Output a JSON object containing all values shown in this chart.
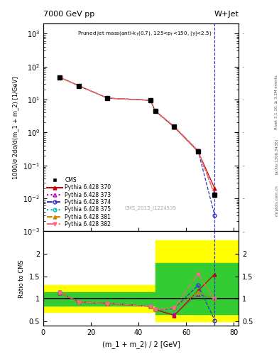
{
  "title_left": "7000 GeV pp",
  "title_right": "W+Jet",
  "annotation": "Pruned jet mass(anti-k$_T$(0.7), 125<p$_T$<150, |y|<2.5)",
  "watermark": "CMS_2013_I1224539",
  "ylabel_main": "1000/σ 2dσ/d(m_1 + m_2) [1/GeV]",
  "ylabel_ratio": "Ratio to CMS",
  "xlabel": "(m_1 + m_2) / 2 [GeV]",
  "right_label": "Rivet 3.1.10, ≥ 3.3M events",
  "arxiv_label": "[arXiv:1306.3436]",
  "mcplots_label": "mcplots.cern.ch",
  "x_data": [
    7,
    15,
    27,
    45,
    47,
    55,
    65,
    72
  ],
  "cms_y": [
    47,
    26,
    11,
    9.5,
    4.5,
    1.5,
    0.27,
    0.013
  ],
  "cms_yerr": [
    3,
    2,
    0.8,
    0.7,
    0.35,
    0.15,
    0.03,
    0.002
  ],
  "py370_y": [
    47,
    26,
    11,
    9.5,
    4.5,
    1.45,
    0.265,
    0.02
  ],
  "py373_y": [
    47,
    26,
    11,
    9.5,
    4.5,
    1.48,
    0.268,
    0.013
  ],
  "py374_y": [
    47,
    26,
    11,
    9.5,
    4.5,
    1.5,
    0.28,
    0.003
  ],
  "py375_y": [
    47,
    26,
    11,
    9.5,
    4.5,
    1.5,
    0.27,
    0.013
  ],
  "py381_y": [
    47,
    26,
    11,
    9.5,
    4.5,
    1.5,
    0.27,
    0.013
  ],
  "py382_y": [
    47,
    26,
    11,
    9.5,
    4.55,
    1.55,
    0.28,
    0.013
  ],
  "ratio_x": [
    7,
    15,
    27,
    45,
    47,
    55,
    65,
    72
  ],
  "r370": [
    1.14,
    0.93,
    0.9,
    0.83,
    0.76,
    0.63,
    1.18,
    1.55
  ],
  "r373": [
    1.13,
    0.92,
    0.89,
    0.83,
    0.77,
    0.65,
    1.1,
    1.0
  ],
  "r374": [
    1.14,
    0.93,
    0.9,
    0.83,
    0.76,
    0.78,
    1.3,
    0.52
  ],
  "r375": [
    1.14,
    0.93,
    0.9,
    0.83,
    0.76,
    0.78,
    1.13,
    1.0
  ],
  "r381": [
    1.14,
    0.93,
    0.9,
    0.83,
    0.76,
    0.8,
    1.15,
    1.0
  ],
  "r382": [
    1.14,
    0.93,
    0.9,
    0.83,
    0.76,
    0.8,
    1.55,
    1.0
  ],
  "vline_x": 72,
  "ylim_main": [
    0.001,
    2000
  ],
  "ylim_ratio": [
    0.4,
    2.5
  ],
  "xlim": [
    0,
    82
  ],
  "color_370": "#cc0000",
  "color_373": "#bb00bb",
  "color_374": "#3333cc",
  "color_375": "#00bbbb",
  "color_381": "#cc8800",
  "color_382": "#ff6688",
  "color_cms": "black",
  "color_yellow": "#ffff00",
  "color_green": "#33cc33"
}
